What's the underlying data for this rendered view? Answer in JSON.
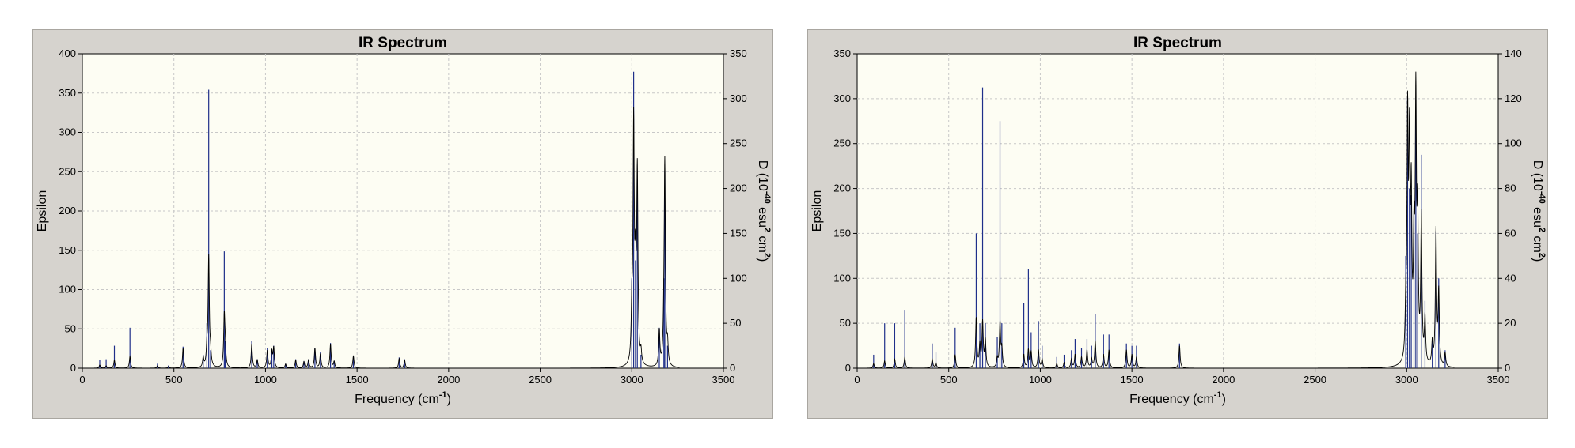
{
  "chart_data": [
    {
      "type": "line",
      "title": "IR Spectrum",
      "xlabel": "Frequency (cm-1)",
      "xlabel_main": "Frequency (cm",
      "xlabel_sup": "-1",
      "xlabel_end": ")",
      "ylabel": "Epsilon",
      "y2label": "D (10-40 esu2 cm2)",
      "y2label_parts": [
        "D (10",
        "-40",
        " esu",
        "2",
        " cm",
        "2",
        ")"
      ],
      "xlim": [
        0,
        3500
      ],
      "ylim": [
        0,
        400
      ],
      "y2lim": [
        0,
        350
      ],
      "xticks": [
        0,
        500,
        1000,
        1500,
        2000,
        2500,
        3000,
        3500
      ],
      "yticks": [
        0,
        50,
        100,
        150,
        200,
        250,
        300,
        350,
        400
      ],
      "y2ticks": [
        0,
        50,
        100,
        150,
        200,
        250,
        300,
        350
      ],
      "grid": true,
      "line_color": "#000000",
      "stick_color": "#1f2f8a",
      "peaks": [
        {
          "x": 95,
          "eps": 4,
          "d": 9
        },
        {
          "x": 130,
          "eps": 3,
          "d": 10
        },
        {
          "x": 175,
          "eps": 10,
          "d": 25
        },
        {
          "x": 260,
          "eps": 15,
          "d": 45
        },
        {
          "x": 410,
          "eps": 3,
          "d": 5
        },
        {
          "x": 470,
          "eps": 2,
          "d": 3
        },
        {
          "x": 550,
          "eps": 25,
          "d": 24
        },
        {
          "x": 660,
          "eps": 12,
          "d": 15
        },
        {
          "x": 680,
          "eps": 20,
          "d": 50
        },
        {
          "x": 690,
          "eps": 140,
          "d": 310
        },
        {
          "x": 700,
          "eps": 15,
          "d": 20
        },
        {
          "x": 775,
          "eps": 65,
          "d": 130
        },
        {
          "x": 780,
          "eps": 20,
          "d": 30
        },
        {
          "x": 925,
          "eps": 30,
          "d": 30
        },
        {
          "x": 955,
          "eps": 10,
          "d": 10
        },
        {
          "x": 1010,
          "eps": 22,
          "d": 22
        },
        {
          "x": 1035,
          "eps": 20,
          "d": 20
        },
        {
          "x": 1045,
          "eps": 25,
          "d": 25
        },
        {
          "x": 1110,
          "eps": 5,
          "d": 5
        },
        {
          "x": 1165,
          "eps": 10,
          "d": 10
        },
        {
          "x": 1210,
          "eps": 8,
          "d": 8
        },
        {
          "x": 1235,
          "eps": 10,
          "d": 10
        },
        {
          "x": 1270,
          "eps": 25,
          "d": 22
        },
        {
          "x": 1300,
          "eps": 18,
          "d": 18
        },
        {
          "x": 1355,
          "eps": 30,
          "d": 28
        },
        {
          "x": 1375,
          "eps": 8,
          "d": 8
        },
        {
          "x": 1480,
          "eps": 15,
          "d": 14
        },
        {
          "x": 1730,
          "eps": 12,
          "d": 12
        },
        {
          "x": 1760,
          "eps": 10,
          "d": 10
        },
        {
          "x": 3000,
          "eps": 60,
          "d": 100
        },
        {
          "x": 3010,
          "eps": 300,
          "d": 330
        },
        {
          "x": 3020,
          "eps": 100,
          "d": 120
        },
        {
          "x": 3030,
          "eps": 240,
          "d": 210
        },
        {
          "x": 3050,
          "eps": 15,
          "d": 15
        },
        {
          "x": 3150,
          "eps": 45,
          "d": 45
        },
        {
          "x": 3175,
          "eps": 30,
          "d": 100
        },
        {
          "x": 3180,
          "eps": 255,
          "d": 220
        },
        {
          "x": 3195,
          "eps": 25,
          "d": 25
        }
      ]
    },
    {
      "type": "line",
      "title": "IR Spectrum",
      "xlabel": "Frequency (cm-1)",
      "xlabel_main": "Frequency (cm",
      "xlabel_sup": "-1",
      "xlabel_end": ")",
      "ylabel": "Epsilon",
      "y2label": "D (10-40 esu2 cm2)",
      "y2label_parts": [
        "D (10",
        "-40",
        " esu",
        "2",
        " cm",
        "2",
        ")"
      ],
      "xlim": [
        0,
        3500
      ],
      "ylim": [
        0,
        350
      ],
      "y2lim": [
        0,
        140
      ],
      "xticks": [
        0,
        500,
        1000,
        1500,
        2000,
        2500,
        3000,
        3500
      ],
      "yticks": [
        0,
        50,
        100,
        150,
        200,
        250,
        300,
        350
      ],
      "y2ticks": [
        0,
        20,
        40,
        60,
        80,
        100,
        120,
        140
      ],
      "grid": true,
      "line_color": "#000000",
      "stick_color": "#1f2f8a",
      "peaks": [
        {
          "x": 90,
          "eps": 5,
          "d": 6
        },
        {
          "x": 150,
          "eps": 8,
          "d": 20
        },
        {
          "x": 205,
          "eps": 10,
          "d": 20
        },
        {
          "x": 260,
          "eps": 12,
          "d": 26
        },
        {
          "x": 410,
          "eps": 10,
          "d": 11
        },
        {
          "x": 430,
          "eps": 6,
          "d": 7
        },
        {
          "x": 535,
          "eps": 15,
          "d": 18
        },
        {
          "x": 650,
          "eps": 55,
          "d": 60
        },
        {
          "x": 670,
          "eps": 25,
          "d": 20
        },
        {
          "x": 685,
          "eps": 50,
          "d": 125
        },
        {
          "x": 700,
          "eps": 30,
          "d": 20
        },
        {
          "x": 765,
          "eps": 10,
          "d": 14
        },
        {
          "x": 780,
          "eps": 50,
          "d": 110
        },
        {
          "x": 790,
          "eps": 20,
          "d": 20
        },
        {
          "x": 910,
          "eps": 15,
          "d": 29
        },
        {
          "x": 935,
          "eps": 20,
          "d": 44
        },
        {
          "x": 950,
          "eps": 18,
          "d": 16
        },
        {
          "x": 990,
          "eps": 20,
          "d": 21
        },
        {
          "x": 1010,
          "eps": 10,
          "d": 10
        },
        {
          "x": 1090,
          "eps": 5,
          "d": 5
        },
        {
          "x": 1130,
          "eps": 6,
          "d": 6
        },
        {
          "x": 1170,
          "eps": 10,
          "d": 8
        },
        {
          "x": 1190,
          "eps": 15,
          "d": 13
        },
        {
          "x": 1225,
          "eps": 12,
          "d": 9
        },
        {
          "x": 1255,
          "eps": 20,
          "d": 13
        },
        {
          "x": 1280,
          "eps": 10,
          "d": 10
        },
        {
          "x": 1300,
          "eps": 30,
          "d": 24
        },
        {
          "x": 1345,
          "eps": 15,
          "d": 15
        },
        {
          "x": 1375,
          "eps": 20,
          "d": 15
        },
        {
          "x": 1470,
          "eps": 20,
          "d": 11
        },
        {
          "x": 1500,
          "eps": 15,
          "d": 10
        },
        {
          "x": 1525,
          "eps": 12,
          "d": 10
        },
        {
          "x": 1760,
          "eps": 25,
          "d": 11
        },
        {
          "x": 2995,
          "eps": 50,
          "d": 50
        },
        {
          "x": 3005,
          "eps": 260,
          "d": 120
        },
        {
          "x": 3015,
          "eps": 220,
          "d": 80
        },
        {
          "x": 3025,
          "eps": 170,
          "d": 77
        },
        {
          "x": 3040,
          "eps": 120,
          "d": 70
        },
        {
          "x": 3050,
          "eps": 280,
          "d": 112
        },
        {
          "x": 3060,
          "eps": 150,
          "d": 60
        },
        {
          "x": 3080,
          "eps": 160,
          "d": 95
        },
        {
          "x": 3100,
          "eps": 50,
          "d": 30
        },
        {
          "x": 3140,
          "eps": 25,
          "d": 12
        },
        {
          "x": 3160,
          "eps": 150,
          "d": 61
        },
        {
          "x": 3175,
          "eps": 80,
          "d": 40
        },
        {
          "x": 3210,
          "eps": 15,
          "d": 8
        }
      ]
    }
  ]
}
